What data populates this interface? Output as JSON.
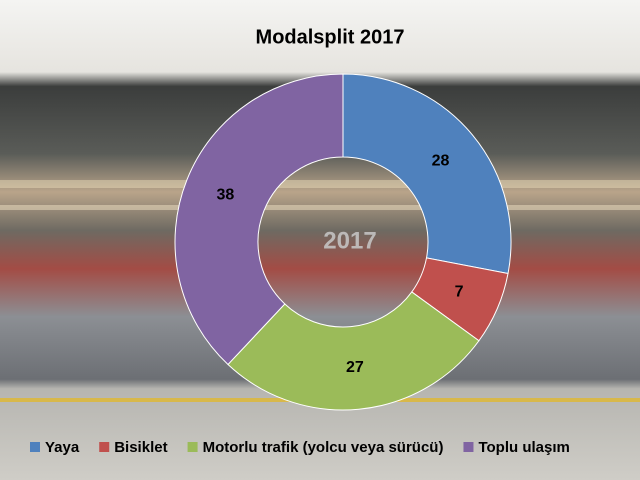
{
  "chart_data": {
    "type": "donut",
    "title": "Modalsplit 2017",
    "center_label": "2017",
    "categories": [
      "Yaya",
      "Bisiklet",
      "Motorlu trafik (yolcu veya sürücü)",
      "Toplu ulaşım"
    ],
    "values": [
      28,
      7,
      27,
      38
    ],
    "colors": [
      "#4f81bd",
      "#c0504d",
      "#9bbb59",
      "#8064a2"
    ]
  }
}
